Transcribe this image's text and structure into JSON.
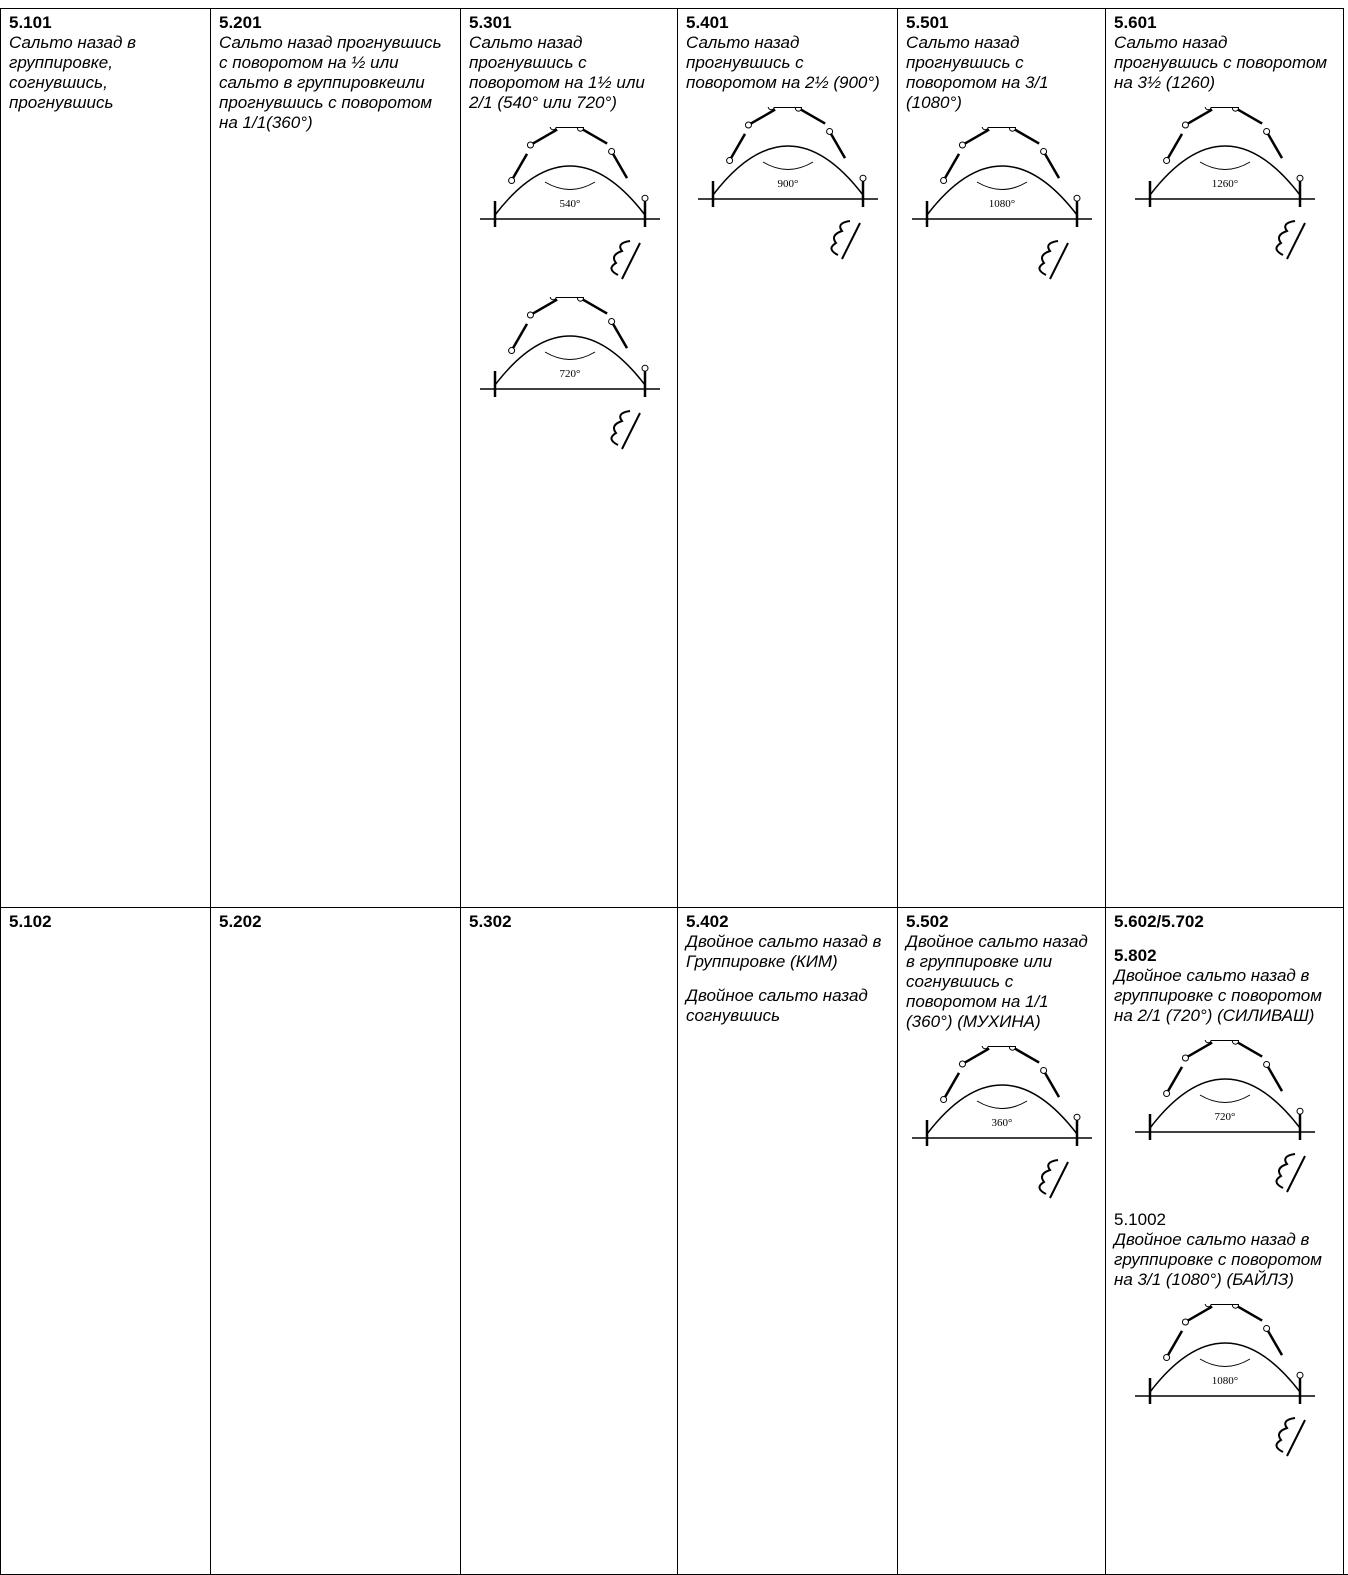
{
  "table": {
    "rows": [
      [
        {
          "blocks": [
            {
              "code": "5.101",
              "text": "Сальто назад в группировке, согнувшись, прогнувшись"
            }
          ]
        },
        {
          "blocks": [
            {
              "code": "5.201",
              "text": "Сальто назад прогнувшись с поворотом на ½ или сальто в группировкеили прогнувшись с поворотом на 1/1(360°)"
            }
          ]
        },
        {
          "blocks": [
            {
              "code": "5.301",
              "text": "Сальто назад прогнувшись с поворотом на 1½ или 2/1 (540° или 720°)",
              "figures": [
                "540°",
                "720°"
              ]
            }
          ]
        },
        {
          "blocks": [
            {
              "code": "5.401",
              "text": "Сальто назад прогнувшись с поворотом на 2½ (900°)",
              "figures": [
                "900°"
              ]
            }
          ]
        },
        {
          "blocks": [
            {
              "code": "5.501",
              "text": "Сальто назад прогнувшись с поворотом на 3/1 (1080°)",
              "figures": [
                "1080°"
              ]
            }
          ]
        },
        {
          "blocks": [
            {
              "code": "5.601",
              "text": "Сальто назад прогнувшись с поворотом на 3½ (1260)",
              "figures": [
                "1260°"
              ]
            }
          ]
        }
      ],
      [
        {
          "blocks": [
            {
              "code": "5.102"
            }
          ]
        },
        {
          "blocks": [
            {
              "code": "5.202"
            }
          ]
        },
        {
          "blocks": [
            {
              "code": "5.302"
            }
          ]
        },
        {
          "blocks": [
            {
              "code": "5.402",
              "text": "Двойное сальто назад в Группировке (КИМ)"
            },
            {
              "text": "Двойное сальто назад согнувшись"
            }
          ]
        },
        {
          "blocks": [
            {
              "code": "5.502",
              "text": "Двойное сальто назад в группировке или согнувшись с поворотом на 1/1 (360°) (МУХИНА)",
              "figures": [
                "360°"
              ]
            }
          ]
        },
        {
          "blocks": [
            {
              "code": "5.602/5.702"
            },
            {
              "code": "5.802",
              "text": "Двойное сальто назад в группировке с поворотом на 2/1 (720°) (СИЛИВАШ)",
              "figures": [
                "720°"
              ]
            },
            {
              "subcode": "5.1002",
              "text": "Двойное сальто назад в группировке с поворотом на 3/1 (1080°) (БАЙЛЗ)",
              "figures": [
                "1080°"
              ]
            }
          ]
        }
      ]
    ]
  }
}
